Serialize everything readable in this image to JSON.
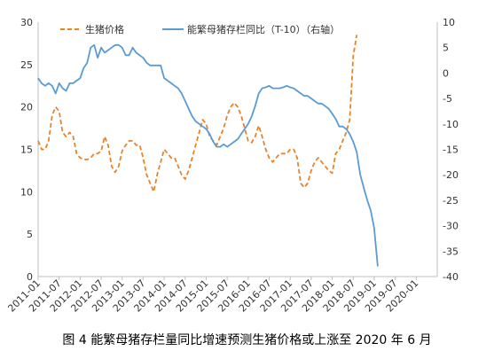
{
  "caption": "图 4 能繁母猪存栏量同比增速预测生猪价格或上涨至 2020 年 6 月",
  "chart_data": {
    "type": "line",
    "title": "",
    "x_tick_labels": [
      "2011-01",
      "2011-07",
      "2012-01",
      "2012-07",
      "2013-01",
      "2013-07",
      "2014-01",
      "2014-07",
      "2015-01",
      "2015-07",
      "2016-01",
      "2016-07",
      "2017-01",
      "2017-07",
      "2018-01",
      "2018-07",
      "2019-01",
      "2019-07",
      "2020-01"
    ],
    "y_left": {
      "min": 0,
      "max": 30,
      "ticks": [
        0,
        5,
        10,
        15,
        20,
        25,
        30
      ]
    },
    "y_right": {
      "min": -40,
      "max": 10,
      "ticks": [
        -40,
        -35,
        -30,
        -25,
        -20,
        -15,
        -10,
        -5,
        0,
        5,
        10
      ]
    },
    "grid": false,
    "legend_position": "top",
    "series": [
      {
        "name": "生猪价格",
        "axis": "left",
        "style": "dashed",
        "color": "#E8832A",
        "start": "2011-01",
        "values": [
          16.0,
          15.0,
          15.0,
          16.0,
          19.0,
          20.0,
          19.5,
          17.0,
          16.5,
          17.0,
          16.5,
          14.5,
          14.0,
          13.8,
          13.8,
          14.0,
          14.5,
          14.5,
          14.8,
          16.5,
          15.5,
          13.0,
          12.3,
          13.0,
          14.8,
          15.5,
          16.0,
          16.0,
          15.5,
          15.5,
          14.0,
          12.0,
          11.0,
          10.0,
          12.0,
          13.5,
          15.0,
          14.5,
          14.0,
          14.0,
          13.0,
          12.0,
          11.5,
          12.5,
          14.0,
          15.5,
          17.0,
          18.5,
          18.0,
          16.5,
          16.0,
          15.5,
          16.5,
          17.5,
          19.0,
          20.0,
          20.5,
          20.0,
          19.0,
          17.5,
          16.0,
          15.8,
          16.5,
          17.8,
          16.5,
          15.0,
          14.0,
          13.5,
          14.0,
          14.5,
          14.5,
          14.5,
          15.0,
          15.0,
          14.0,
          11.0,
          10.5,
          11.0,
          12.5,
          13.5,
          14.0,
          13.5,
          13.0,
          12.5,
          12.2,
          14.5,
          15.0,
          16.0,
          17.0,
          18.5,
          26.0,
          28.5
        ]
      },
      {
        "name": "能繁母猪存栏同比（T-10）（右轴）",
        "axis": "right",
        "style": "solid",
        "color": "#5B9BD5",
        "start": "2011-01",
        "values": [
          -1.0,
          -2.0,
          -2.5,
          -2.0,
          -2.5,
          -4.0,
          -2.0,
          -3.0,
          -3.5,
          -2.0,
          -2.0,
          -1.5,
          -1.0,
          1.0,
          2.0,
          5.0,
          5.5,
          3.0,
          5.0,
          4.0,
          4.5,
          5.0,
          5.5,
          5.5,
          5.0,
          3.5,
          3.5,
          5.0,
          4.0,
          3.5,
          3.0,
          2.0,
          1.5,
          1.5,
          1.5,
          1.5,
          -1.0,
          -1.5,
          -2.0,
          -2.5,
          -3.0,
          -4.0,
          -5.5,
          -7.0,
          -8.5,
          -9.5,
          -10.0,
          -10.5,
          -11.0,
          -12.0,
          -13.5,
          -14.5,
          -14.5,
          -14.0,
          -14.5,
          -14.0,
          -13.5,
          -13.0,
          -12.0,
          -11.0,
          -10.0,
          -8.5,
          -6.5,
          -4.0,
          -3.0,
          -2.8,
          -2.5,
          -3.0,
          -3.0,
          -3.0,
          -2.8,
          -2.5,
          -2.8,
          -3.0,
          -3.5,
          -4.0,
          -4.5,
          -4.5,
          -5.0,
          -5.5,
          -6.0,
          -6.0,
          -6.5,
          -7.0,
          -8.0,
          -9.0,
          -10.5,
          -10.5,
          -11.0,
          -12.0,
          -13.5,
          -15.5,
          -20.0,
          -22.5,
          -25.0,
          -27.0,
          -30.5,
          -38.0
        ]
      }
    ]
  }
}
